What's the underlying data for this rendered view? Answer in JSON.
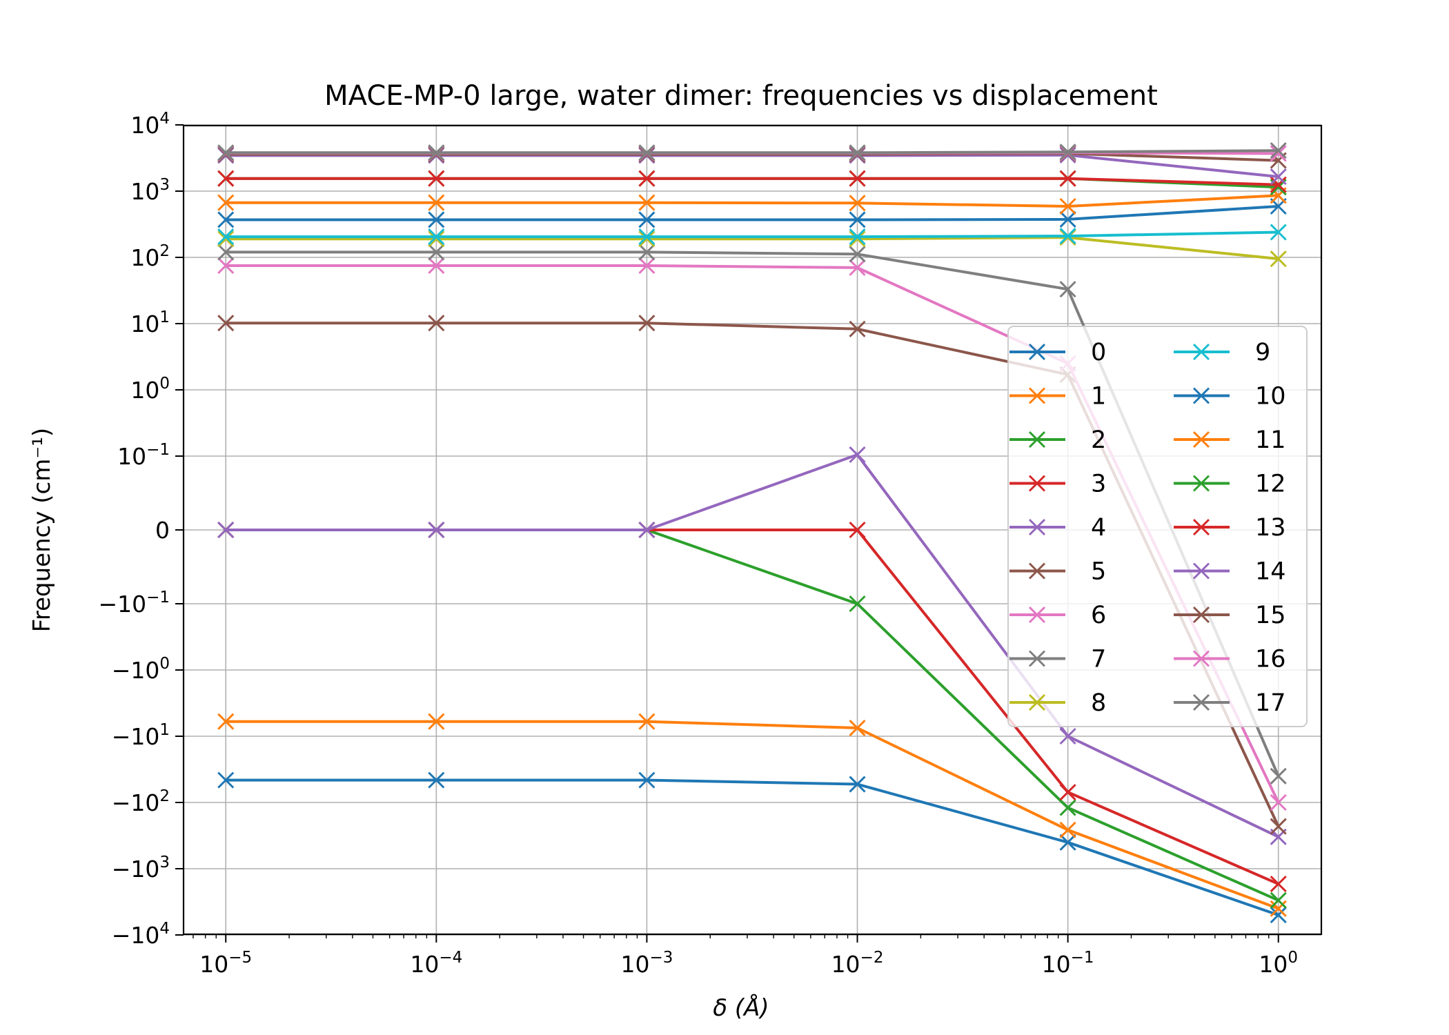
{
  "chart_data": {
    "type": "line",
    "title": "MACE-MP-0 large, water dimer: frequencies vs displacement",
    "xlabel": "δ (Å)",
    "ylabel": "Frequency (cm⁻¹)",
    "x_scale": "log",
    "y_scale": "symlog",
    "x": [
      1e-05,
      0.0001,
      0.001,
      0.01,
      0.1,
      1
    ],
    "xlim": [
      6.3e-06,
      1.6
    ],
    "ylim": [
      -10000,
      10000
    ],
    "x_tick_labels": [
      {
        "base": "10",
        "exp": "−5"
      },
      {
        "base": "10",
        "exp": "−4"
      },
      {
        "base": "10",
        "exp": "−3"
      },
      {
        "base": "10",
        "exp": "−2"
      },
      {
        "base": "10",
        "exp": "−1"
      },
      {
        "base": "10",
        "exp": "0"
      }
    ],
    "y_ticks": [
      {
        "value": 10000,
        "base": "10",
        "exp": "4"
      },
      {
        "value": 1000,
        "base": "10",
        "exp": "3"
      },
      {
        "value": 100,
        "base": "10",
        "exp": "2"
      },
      {
        "value": 10,
        "base": "10",
        "exp": "1"
      },
      {
        "value": 1,
        "base": "10",
        "exp": "0"
      },
      {
        "value": 0.1,
        "base": "10",
        "exp": "−1"
      },
      {
        "value": 0,
        "base": "0",
        "exp": ""
      },
      {
        "value": -0.1,
        "base": "−10",
        "exp": "−1"
      },
      {
        "value": -1,
        "base": "−10",
        "exp": "0"
      },
      {
        "value": -10,
        "base": "−10",
        "exp": "1"
      },
      {
        "value": -100,
        "base": "−10",
        "exp": "2"
      },
      {
        "value": -1000,
        "base": "−10",
        "exp": "3"
      },
      {
        "value": -10000,
        "base": "−10",
        "exp": "4"
      }
    ],
    "grid": true,
    "marker": "x",
    "legend": {
      "placement": "center-right",
      "columns": 2
    },
    "series": [
      {
        "name": "0",
        "color": "#1f77b4",
        "values": [
          -46,
          -46,
          -46,
          -53,
          -400,
          -5000
        ]
      },
      {
        "name": "1",
        "color": "#ff7f0e",
        "values": [
          -6.0,
          -6.0,
          -6.0,
          -7.5,
          -260,
          -4000
        ]
      },
      {
        "name": "2",
        "color": "#2ca02c",
        "values": [
          0,
          0,
          0,
          -0.1,
          -120,
          -3000
        ]
      },
      {
        "name": "3",
        "color": "#d62728",
        "values": [
          0,
          0,
          0,
          0,
          -70,
          -1700
        ]
      },
      {
        "name": "4",
        "color": "#9467bd",
        "values": [
          0,
          0,
          0,
          0.105,
          -10,
          -330
        ]
      },
      {
        "name": "5",
        "color": "#8c564b",
        "values": [
          10.2,
          10.2,
          10.2,
          8.3,
          1.7,
          -230
        ]
      },
      {
        "name": "6",
        "color": "#e377c2",
        "values": [
          75,
          75,
          75,
          70,
          2.5,
          -100
        ]
      },
      {
        "name": "7",
        "color": "#7f7f7f",
        "values": [
          120,
          120,
          120,
          112,
          33,
          -40
        ]
      },
      {
        "name": "8",
        "color": "#bcbd22",
        "values": [
          190,
          190,
          190,
          190,
          200,
          95
        ]
      },
      {
        "name": "9",
        "color": "#17becf",
        "values": [
          205,
          205,
          205,
          205,
          210,
          240
        ]
      },
      {
        "name": "10",
        "color": "#1f77b4",
        "values": [
          370,
          370,
          370,
          370,
          375,
          590
        ]
      },
      {
        "name": "11",
        "color": "#ff7f0e",
        "values": [
          670,
          670,
          670,
          660,
          590,
          860
        ]
      },
      {
        "name": "12",
        "color": "#2ca02c",
        "values": [
          1550,
          1550,
          1550,
          1550,
          1550,
          1150
        ]
      },
      {
        "name": "13",
        "color": "#d62728",
        "values": [
          1550,
          1550,
          1550,
          1550,
          1550,
          1250
        ]
      },
      {
        "name": "14",
        "color": "#9467bd",
        "values": [
          3450,
          3450,
          3450,
          3450,
          3500,
          1650
        ]
      },
      {
        "name": "15",
        "color": "#8c564b",
        "values": [
          3600,
          3600,
          3600,
          3600,
          3700,
          2900
        ]
      },
      {
        "name": "16",
        "color": "#e377c2",
        "values": [
          3750,
          3750,
          3750,
          3750,
          3800,
          3700
        ]
      },
      {
        "name": "17",
        "color": "#7f7f7f",
        "values": [
          3800,
          3800,
          3800,
          3800,
          3900,
          4100
        ]
      }
    ]
  }
}
